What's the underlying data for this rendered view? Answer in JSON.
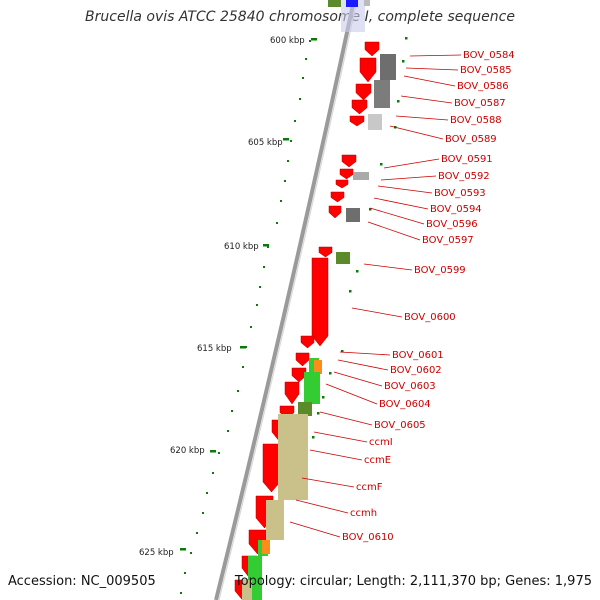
{
  "title": "Brucella ovis ATCC 25840 chromosome I, complete sequence",
  "accession": "Accession: NC_009505",
  "summary": "Topology: circular; Length: 2,111,370 bp; Genes: 1,975",
  "colors": {
    "cds_forward": "#ff0000",
    "backbone": "#888888",
    "ticks": "#0a7a0a",
    "label": "#cc0000",
    "leader": "#cc0000",
    "light_green": "#33cc33",
    "dark_green": "#5a8a2a",
    "olive": "#c9c08a",
    "orange": "#ff8c1a",
    "blue": "#1a1aff",
    "dark_grey": "#6e6e6e",
    "light_grey": "#c8c8c8"
  },
  "kbp_ticks": [
    {
      "label": "600 kbp"
    },
    {
      "label": "605 kbp"
    },
    {
      "label": "610 kbp"
    },
    {
      "label": "615 kbp"
    },
    {
      "label": "620 kbp"
    },
    {
      "label": "625 kbp"
    }
  ],
  "gene_labels": [
    "BOV_0584",
    "BOV_0585",
    "BOV_0586",
    "BOV_0587",
    "BOV_0588",
    "BOV_0589",
    "BOV_0591",
    "BOV_0592",
    "BOV_0593",
    "BOV_0594",
    "BOV_0596",
    "BOV_0597",
    "BOV_0599",
    "BOV_0600",
    "BOV_0601",
    "BOV_0602",
    "BOV_0603",
    "BOV_0604",
    "BOV_0605",
    "ccmI",
    "ccmE",
    "ccmF",
    "ccmh",
    "BOV_0610"
  ]
}
